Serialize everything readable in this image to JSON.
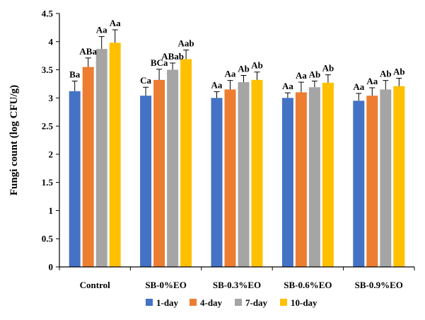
{
  "chart_data": {
    "type": "bar",
    "ylabel": "Fungi count (log CFU/g)",
    "xlabel": "",
    "ylim": [
      0,
      4.5
    ],
    "yticks": [
      "0",
      "0.5",
      "1",
      "1.5",
      "2",
      "2.5",
      "3",
      "3.5",
      "4",
      "4.5"
    ],
    "grid": false,
    "legend_position": "bottom",
    "categories": [
      "Control",
      "SB-0%EO",
      "SB-0.3%EO",
      "SB-0.6%EO",
      "SB-0.9%EO"
    ],
    "series": [
      {
        "name": "1-day",
        "color": "#4472C4",
        "values": [
          3.12,
          3.04,
          3.0,
          3.0,
          2.95
        ],
        "errors": [
          0.18,
          0.15,
          0.11,
          0.09,
          0.13
        ],
        "labels": [
          "Ba",
          "Ca",
          "Aa",
          "Aa",
          "Aa"
        ]
      },
      {
        "name": "4-day",
        "color": "#ED7D31",
        "values": [
          3.55,
          3.32,
          3.15,
          3.1,
          3.04
        ],
        "errors": [
          0.16,
          0.19,
          0.16,
          0.18,
          0.14
        ],
        "labels": [
          "ABa",
          "BCa",
          "Aa",
          "Aa",
          "Aa"
        ]
      },
      {
        "name": "7-day",
        "color": "#A5A5A5",
        "values": [
          3.87,
          3.5,
          3.28,
          3.19,
          3.15
        ],
        "errors": [
          0.22,
          0.12,
          0.12,
          0.11,
          0.16
        ],
        "labels": [
          "Aa",
          "ABab",
          "Ab",
          "Ab",
          "Ab"
        ]
      },
      {
        "name": "10-day",
        "color": "#FFC000",
        "values": [
          3.98,
          3.69,
          3.32,
          3.27,
          3.21
        ],
        "errors": [
          0.23,
          0.16,
          0.14,
          0.14,
          0.14
        ],
        "labels": [
          "Aa",
          "Aab",
          "Ab",
          "Ab",
          "Ab"
        ]
      }
    ]
  }
}
